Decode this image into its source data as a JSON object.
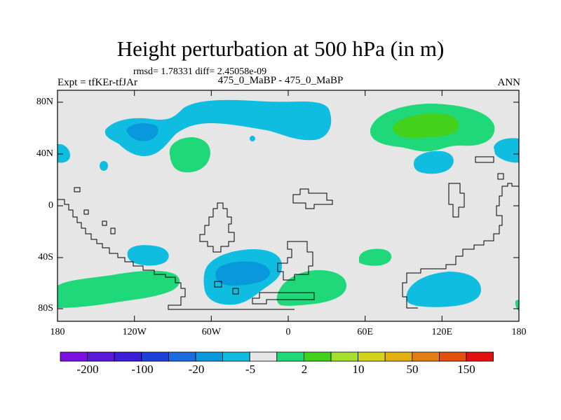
{
  "map": {
    "title": "Height perturbation at 500 hPa (in m)",
    "stats": "rmsd= 1.78331 diff= 2.45058e-09",
    "experiment": "Expt = tfKEr-tfJAr",
    "case": "475_0_MaBP - 475_0_MaBP",
    "season": "ANN",
    "lat_labels": [
      "80N",
      "40N",
      "0",
      "40S",
      "80S"
    ],
    "lon_labels": [
      "180",
      "120W",
      "60W",
      "0",
      "60E",
      "120E",
      "180"
    ],
    "colors": {
      "background_level": "#e6e6e6",
      "positive_weak": "#1fd87a",
      "positive_mid": "#44d11c",
      "negative_weak": "#0ebde0",
      "negative_mid": "#0a98dc",
      "coastline": "#000000"
    }
  },
  "colorbar": {
    "colors": [
      "#7b10e0",
      "#5b18d9",
      "#3a1fd6",
      "#1f3fd9",
      "#1d6be0",
      "#0a98dc",
      "#0ebde0",
      "#e6e6e6",
      "#1fd87a",
      "#44d11c",
      "#a4df2e",
      "#d4d21a",
      "#e3b10e",
      "#e37f0e",
      "#e3500e",
      "#e31010"
    ],
    "labels": [
      "-200",
      "-100",
      "-20",
      "-5",
      "2",
      "10",
      "50",
      "150"
    ]
  }
}
